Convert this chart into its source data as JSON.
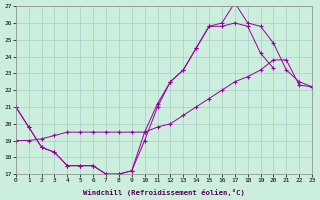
{
  "xlabel": "Windchill (Refroidissement éolien,°C)",
  "background_color": "#cceedd",
  "grid_color": "#aacccc",
  "line_color": "#990099",
  "xlim": [
    0,
    23
  ],
  "ylim": [
    17,
    27
  ],
  "xticks": [
    0,
    1,
    2,
    3,
    4,
    5,
    6,
    7,
    8,
    9,
    10,
    11,
    12,
    13,
    14,
    15,
    16,
    17,
    18,
    19,
    20,
    21,
    22,
    23
  ],
  "yticks": [
    17,
    18,
    19,
    20,
    21,
    22,
    23,
    24,
    25,
    26,
    27
  ],
  "line1_x": [
    0,
    1,
    2,
    3,
    4,
    5,
    6,
    7,
    8,
    9,
    10,
    11,
    12,
    13,
    14,
    15,
    16,
    17,
    18,
    19,
    20,
    21,
    22,
    23
  ],
  "line1_y": [
    21.0,
    19.8,
    18.6,
    18.3,
    17.5,
    17.5,
    17.5,
    17.0,
    17.0,
    17.2,
    19.5,
    21.2,
    22.5,
    23.2,
    24.5,
    25.8,
    26.0,
    27.2,
    26.0,
    25.8,
    24.8,
    23.2,
    22.5,
    22.2
  ],
  "line2_x": [
    0,
    1,
    2,
    3,
    4,
    5,
    6,
    7,
    8,
    9,
    10,
    11,
    12,
    13,
    14,
    15,
    16,
    17,
    18,
    19,
    20,
    21,
    22,
    23
  ],
  "line2_y": [
    21.0,
    19.8,
    18.6,
    18.3,
    17.5,
    17.5,
    17.5,
    17.0,
    17.0,
    17.2,
    19.0,
    21.0,
    22.5,
    23.2,
    24.5,
    25.8,
    25.8,
    26.0,
    25.8,
    24.2,
    23.3,
    null,
    null,
    null
  ],
  "line3_x": [
    0,
    1,
    2,
    3,
    4,
    5,
    6,
    7,
    8,
    9,
    10,
    11,
    12,
    13,
    14,
    15,
    16,
    17,
    18,
    19,
    20,
    21,
    22,
    23
  ],
  "line3_y": [
    19.0,
    19.0,
    19.1,
    19.3,
    19.5,
    19.5,
    19.5,
    19.5,
    19.5,
    19.5,
    19.5,
    19.8,
    20.0,
    20.5,
    21.0,
    21.5,
    22.0,
    22.5,
    22.8,
    23.2,
    23.8,
    23.8,
    22.3,
    22.2
  ]
}
